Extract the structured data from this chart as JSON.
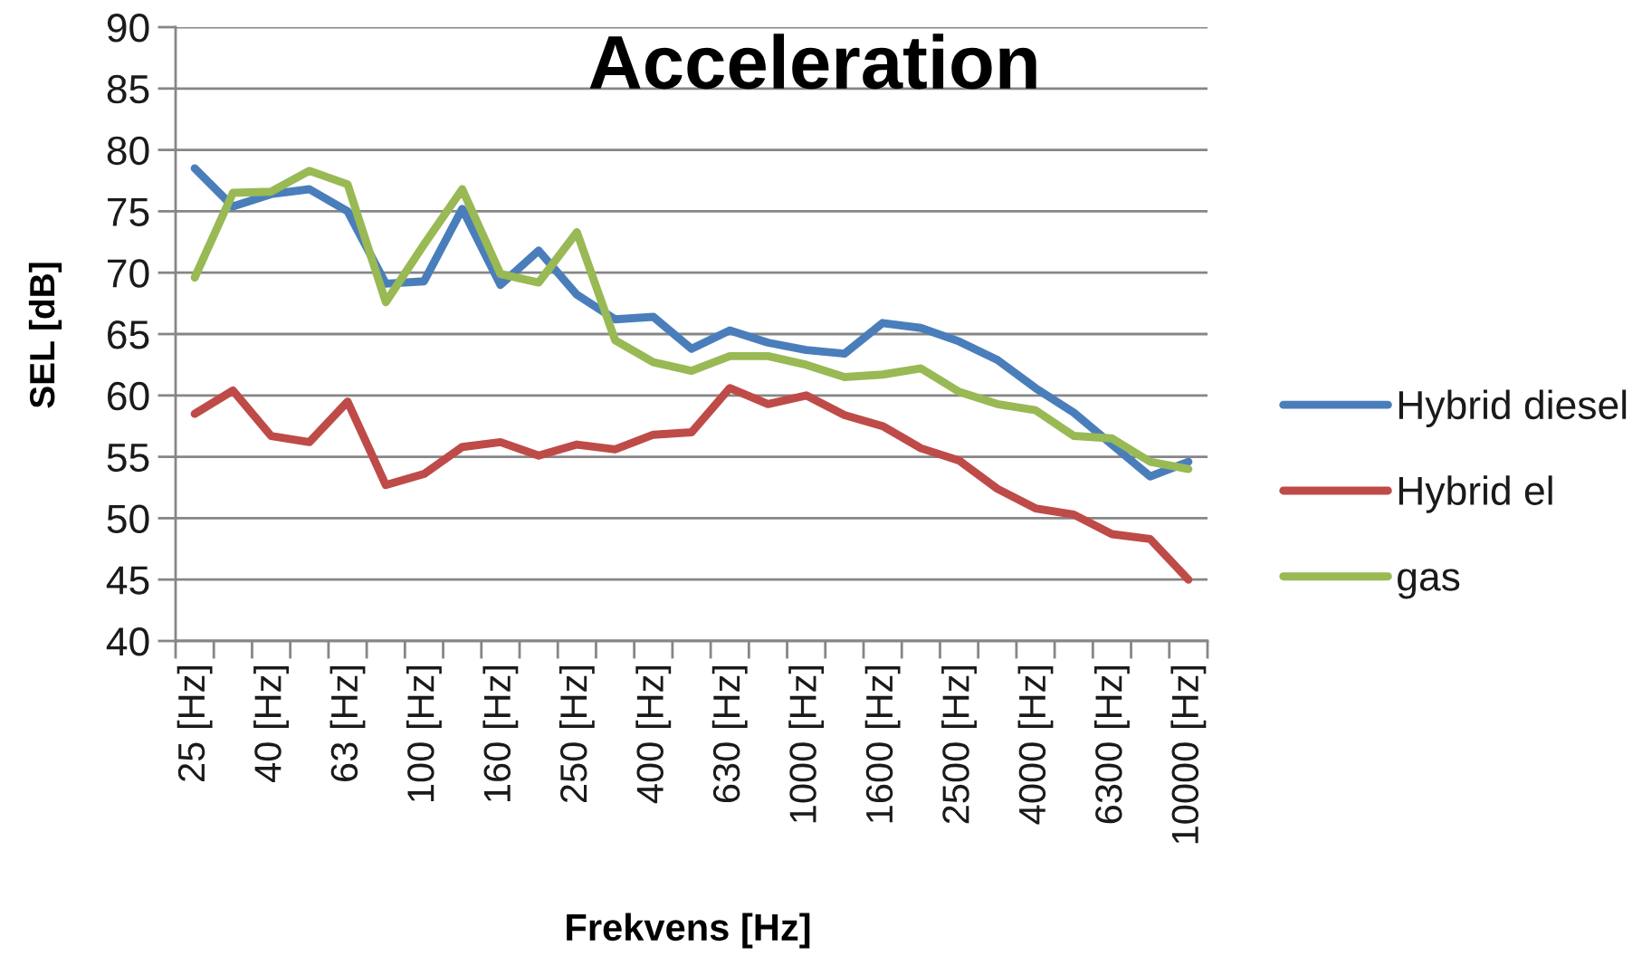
{
  "chart_data": {
    "type": "line",
    "title": "Acceleration",
    "xlabel": "Frekvens [Hz]",
    "ylabel": "SEL [dB]",
    "categories": [
      "25 [Hz]",
      null,
      "40 [Hz]",
      null,
      "63 [Hz]",
      null,
      "100 [Hz]",
      null,
      "160 [Hz]",
      null,
      "250 [Hz]",
      null,
      "400 [Hz]",
      null,
      "630 [Hz]",
      null,
      "1000 [Hz]",
      null,
      "1600 [Hz]",
      null,
      "2500 [Hz]",
      null,
      "4000 [Hz]",
      null,
      "6300 [Hz]",
      null,
      "10000 [Hz]"
    ],
    "series": [
      {
        "name": "Hybrid diesel",
        "color": "#4a7ebb",
        "values": [
          78.5,
          75.4,
          76.4,
          76.8,
          75.0,
          69.1,
          69.3,
          75.2,
          69.0,
          71.8,
          68.2,
          66.2,
          66.4,
          63.8,
          65.3,
          64.3,
          63.7,
          63.4,
          65.9,
          65.5,
          64.4,
          62.9,
          60.6,
          58.6,
          56.0,
          53.4,
          54.6
        ]
      },
      {
        "name": "Hybrid el",
        "color": "#be4b48",
        "values": [
          58.5,
          60.4,
          56.7,
          56.2,
          59.5,
          52.7,
          53.6,
          55.8,
          56.2,
          55.1,
          56.0,
          55.6,
          56.8,
          57.0,
          60.6,
          59.3,
          60.0,
          58.4,
          57.5,
          55.7,
          54.7,
          52.4,
          50.8,
          50.3,
          48.7,
          48.3,
          45.0
        ]
      },
      {
        "name": "gas",
        "color": "#98b954",
        "values": [
          69.6,
          76.5,
          76.6,
          78.3,
          77.2,
          67.6,
          72.3,
          76.8,
          69.9,
          69.2,
          73.3,
          64.5,
          62.7,
          62.0,
          63.2,
          63.2,
          62.5,
          61.5,
          61.7,
          62.2,
          60.3,
          59.3,
          58.8,
          56.7,
          56.5,
          54.6,
          54.0
        ]
      }
    ],
    "ylim": [
      40,
      90
    ],
    "yticks": [
      40,
      45,
      50,
      55,
      60,
      65,
      70,
      75,
      80,
      85,
      90
    ],
    "grid": "y",
    "legend": "right"
  }
}
